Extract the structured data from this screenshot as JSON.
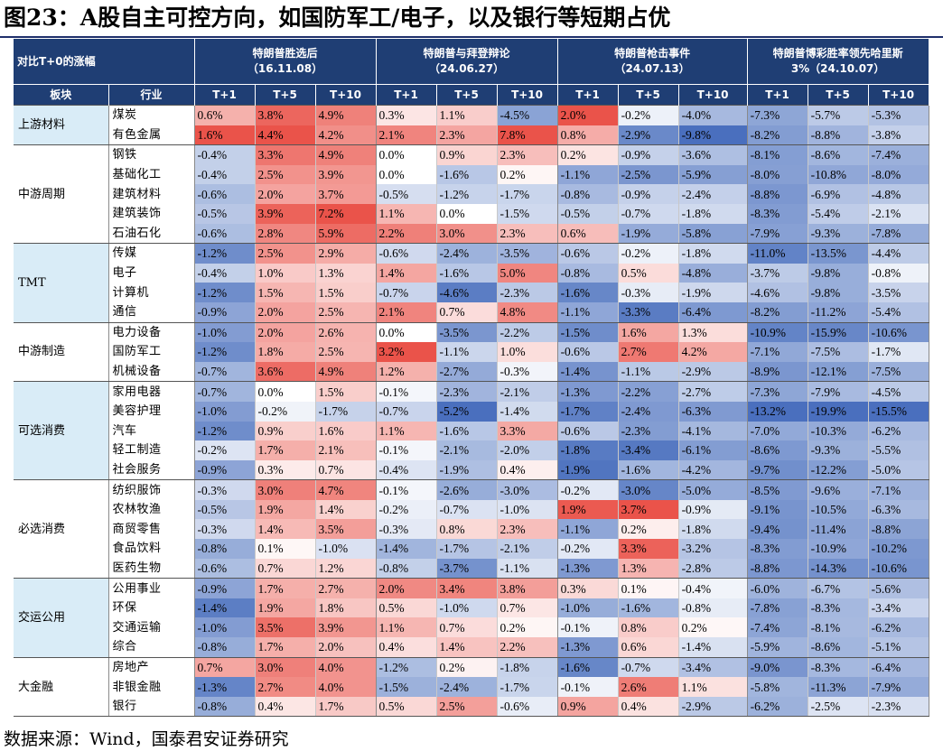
{
  "title": "图23：A股自主可控方向，如国防军工/电子，以及银行等短期占优",
  "source": "数据来源：Wind，国泰君安证券研究",
  "header": {
    "corner_label": "对比T+0的涨幅",
    "sector_col": "板块",
    "industry_col": "行业",
    "events": [
      {
        "name": "特朗普胜选后",
        "date": "（16.11.08）"
      },
      {
        "name": "特朗普与拜登辩论",
        "date": "（24.06.27）"
      },
      {
        "name": "特朗普枪击事件",
        "date": "（24.07.13）"
      },
      {
        "name": "特朗普博彩胜率领先哈里斯",
        "date": "3%（24.10.07）"
      }
    ],
    "periods": [
      "T+1",
      "T+5",
      "T+10",
      "T+1",
      "T+5",
      "T+10",
      "T+1",
      "T+5",
      "T+10",
      "T+1",
      "T+5",
      "T+10"
    ]
  },
  "colors": {
    "header_bg": "#1f3e74",
    "sector_bg": "#d9ecf7",
    "positive": "#e8443a",
    "negative": "#3a63b8",
    "title_rule": "#1f2f6b"
  },
  "groups": [
    {
      "sector": "上游材料",
      "shaded": true,
      "rows": [
        {
          "industry": "煤炭",
          "values": [
            0.6,
            3.8,
            4.9,
            0.3,
            1.1,
            -4.5,
            2.0,
            -0.2,
            -4.0,
            -7.3,
            -5.7,
            -5.3
          ]
        },
        {
          "industry": "有色金属",
          "values": [
            1.6,
            4.4,
            4.2,
            2.1,
            2.3,
            7.8,
            0.8,
            -2.9,
            -9.8,
            -8.2,
            -8.8,
            -3.8
          ]
        }
      ]
    },
    {
      "sector": "中游周期",
      "shaded": false,
      "rows": [
        {
          "industry": "钢铁",
          "values": [
            -0.4,
            3.3,
            4.9,
            0.0,
            0.9,
            2.3,
            0.2,
            -0.9,
            -3.6,
            -8.1,
            -8.6,
            -7.4
          ]
        },
        {
          "industry": "基础化工",
          "values": [
            -0.4,
            2.5,
            3.9,
            0.0,
            -1.6,
            0.2,
            -1.1,
            -2.5,
            -5.9,
            -8.0,
            -10.8,
            -8.0
          ]
        },
        {
          "industry": "建筑材料",
          "values": [
            -0.6,
            2.0,
            3.7,
            -0.5,
            -1.2,
            -1.7,
            -0.8,
            -0.9,
            -2.4,
            -8.8,
            -6.9,
            -4.8
          ]
        },
        {
          "industry": "建筑装饰",
          "values": [
            -0.5,
            3.9,
            7.2,
            1.1,
            0.0,
            -1.5,
            -0.5,
            -0.7,
            -1.8,
            -8.3,
            -5.4,
            -2.1
          ]
        },
        {
          "industry": "石油石化",
          "values": [
            -0.6,
            2.8,
            5.9,
            2.2,
            3.0,
            2.3,
            0.6,
            -1.9,
            -5.8,
            -7.9,
            -9.3,
            -7.8
          ]
        }
      ]
    },
    {
      "sector": "TMT",
      "shaded": true,
      "rows": [
        {
          "industry": "传媒",
          "values": [
            -1.2,
            2.5,
            2.9,
            -0.6,
            -2.4,
            -3.5,
            -0.6,
            -0.2,
            -1.8,
            -11.0,
            -13.5,
            -4.4
          ]
        },
        {
          "industry": "电子",
          "values": [
            -0.4,
            1.0,
            1.3,
            1.4,
            -1.6,
            5.0,
            -0.8,
            0.5,
            -4.8,
            -3.7,
            -9.8,
            -0.8
          ]
        },
        {
          "industry": "计算机",
          "values": [
            -1.2,
            1.5,
            1.5,
            -0.7,
            -4.6,
            -2.3,
            -1.6,
            -0.3,
            -1.9,
            -4.6,
            -9.8,
            -3.5
          ]
        },
        {
          "industry": "通信",
          "values": [
            -0.9,
            2.0,
            2.5,
            2.1,
            0.7,
            4.8,
            -1.1,
            -3.3,
            -6.4,
            -8.2,
            -11.2,
            -5.4
          ]
        }
      ]
    },
    {
      "sector": "中游制造",
      "shaded": false,
      "rows": [
        {
          "industry": "电力设备",
          "values": [
            -1.0,
            2.0,
            2.6,
            0.0,
            -3.5,
            -2.2,
            -1.5,
            1.6,
            1.3,
            -10.9,
            -15.9,
            -10.6
          ]
        },
        {
          "industry": "国防军工",
          "values": [
            -1.2,
            1.8,
            2.5,
            3.2,
            -1.1,
            1.0,
            -0.6,
            2.7,
            4.2,
            -7.1,
            -7.5,
            -1.7
          ]
        },
        {
          "industry": "机械设备",
          "values": [
            -0.7,
            3.6,
            4.9,
            1.2,
            -2.7,
            -0.3,
            -1.4,
            -1.1,
            -2.9,
            -8.9,
            -12.1,
            -7.5
          ]
        }
      ]
    },
    {
      "sector": "可选消费",
      "shaded": true,
      "rows": [
        {
          "industry": "家用电器",
          "values": [
            -0.7,
            0.0,
            1.5,
            -0.1,
            -2.3,
            -2.1,
            -1.3,
            -2.2,
            -2.7,
            -7.3,
            -7.9,
            -4.5
          ]
        },
        {
          "industry": "美容护理",
          "values": [
            -1.0,
            -0.2,
            -1.7,
            -0.7,
            -5.2,
            -1.4,
            -1.7,
            -2.4,
            -6.3,
            -13.2,
            -19.9,
            -15.5
          ]
        },
        {
          "industry": "汽车",
          "values": [
            -1.2,
            0.9,
            1.6,
            1.1,
            -1.6,
            3.3,
            -0.6,
            -2.3,
            -4.1,
            -7.0,
            -10.3,
            -6.2
          ]
        },
        {
          "industry": "轻工制造",
          "values": [
            -0.2,
            1.7,
            2.1,
            -0.1,
            -2.1,
            -2.0,
            -1.8,
            -3.4,
            -6.1,
            -8.6,
            -9.3,
            -5.5
          ]
        },
        {
          "industry": "社会服务",
          "values": [
            -0.9,
            0.3,
            0.7,
            -0.4,
            -1.9,
            0.4,
            -1.9,
            -1.6,
            -4.2,
            -9.7,
            -12.2,
            -5.0
          ]
        }
      ]
    },
    {
      "sector": "必选消费",
      "shaded": false,
      "rows": [
        {
          "industry": "纺织服饰",
          "values": [
            -0.3,
            3.0,
            4.7,
            -0.1,
            -2.6,
            -3.0,
            -0.2,
            -3.0,
            -5.0,
            -8.5,
            -9.6,
            -7.1
          ]
        },
        {
          "industry": "农林牧渔",
          "values": [
            -0.5,
            1.9,
            1.4,
            -0.2,
            -0.7,
            -1.0,
            1.9,
            3.7,
            -0.9,
            -9.1,
            -10.5,
            -6.3
          ]
        },
        {
          "industry": "商贸零售",
          "values": [
            -0.3,
            1.4,
            3.5,
            -0.3,
            0.8,
            2.3,
            -1.1,
            0.2,
            -1.8,
            -9.4,
            -11.4,
            -8.8
          ]
        },
        {
          "industry": "食品饮料",
          "values": [
            -0.8,
            0.1,
            -1.0,
            -1.4,
            -1.7,
            -2.1,
            -0.2,
            3.3,
            -3.2,
            -8.3,
            -10.9,
            -10.2
          ]
        },
        {
          "industry": "医药生物",
          "values": [
            -0.6,
            0.7,
            1.2,
            -0.8,
            -3.7,
            -1.1,
            -1.3,
            1.3,
            -2.8,
            -8.8,
            -14.3,
            -10.6
          ]
        }
      ]
    },
    {
      "sector": "交运公用",
      "shaded": true,
      "rows": [
        {
          "industry": "公用事业",
          "values": [
            -0.9,
            1.7,
            2.7,
            2.0,
            3.4,
            3.8,
            0.3,
            0.1,
            -0.4,
            -6.0,
            -6.7,
            -5.6
          ]
        },
        {
          "industry": "环保",
          "values": [
            -1.4,
            1.9,
            1.8,
            0.5,
            -1.0,
            0.7,
            -1.0,
            -1.6,
            -0.8,
            -7.8,
            -8.3,
            -3.4
          ]
        },
        {
          "industry": "交通运输",
          "values": [
            -1.0,
            3.5,
            3.9,
            1.1,
            0.7,
            0.2,
            -0.1,
            0.8,
            0.2,
            -7.4,
            -8.1,
            -6.2
          ]
        },
        {
          "industry": "综合",
          "values": [
            -0.8,
            1.7,
            2.0,
            0.4,
            1.4,
            2.2,
            -1.3,
            0.6,
            -1.4,
            -5.9,
            -8.6,
            -5.1
          ]
        }
      ]
    },
    {
      "sector": "大金融",
      "shaded": false,
      "rows": [
        {
          "industry": "房地产",
          "values": [
            0.7,
            3.0,
            4.0,
            -1.2,
            0.2,
            -1.8,
            -1.6,
            -0.7,
            -3.4,
            -9.0,
            -8.3,
            -6.4
          ]
        },
        {
          "industry": "非银金融",
          "values": [
            -1.3,
            2.7,
            4.0,
            -1.5,
            -2.4,
            -1.7,
            -0.1,
            2.6,
            1.1,
            -5.8,
            -11.3,
            -7.9
          ]
        },
        {
          "industry": "银行",
          "values": [
            -0.8,
            0.4,
            1.7,
            0.5,
            2.5,
            -0.6,
            0.9,
            0.4,
            -2.9,
            -6.2,
            -2.5,
            -2.3
          ]
        }
      ]
    }
  ]
}
